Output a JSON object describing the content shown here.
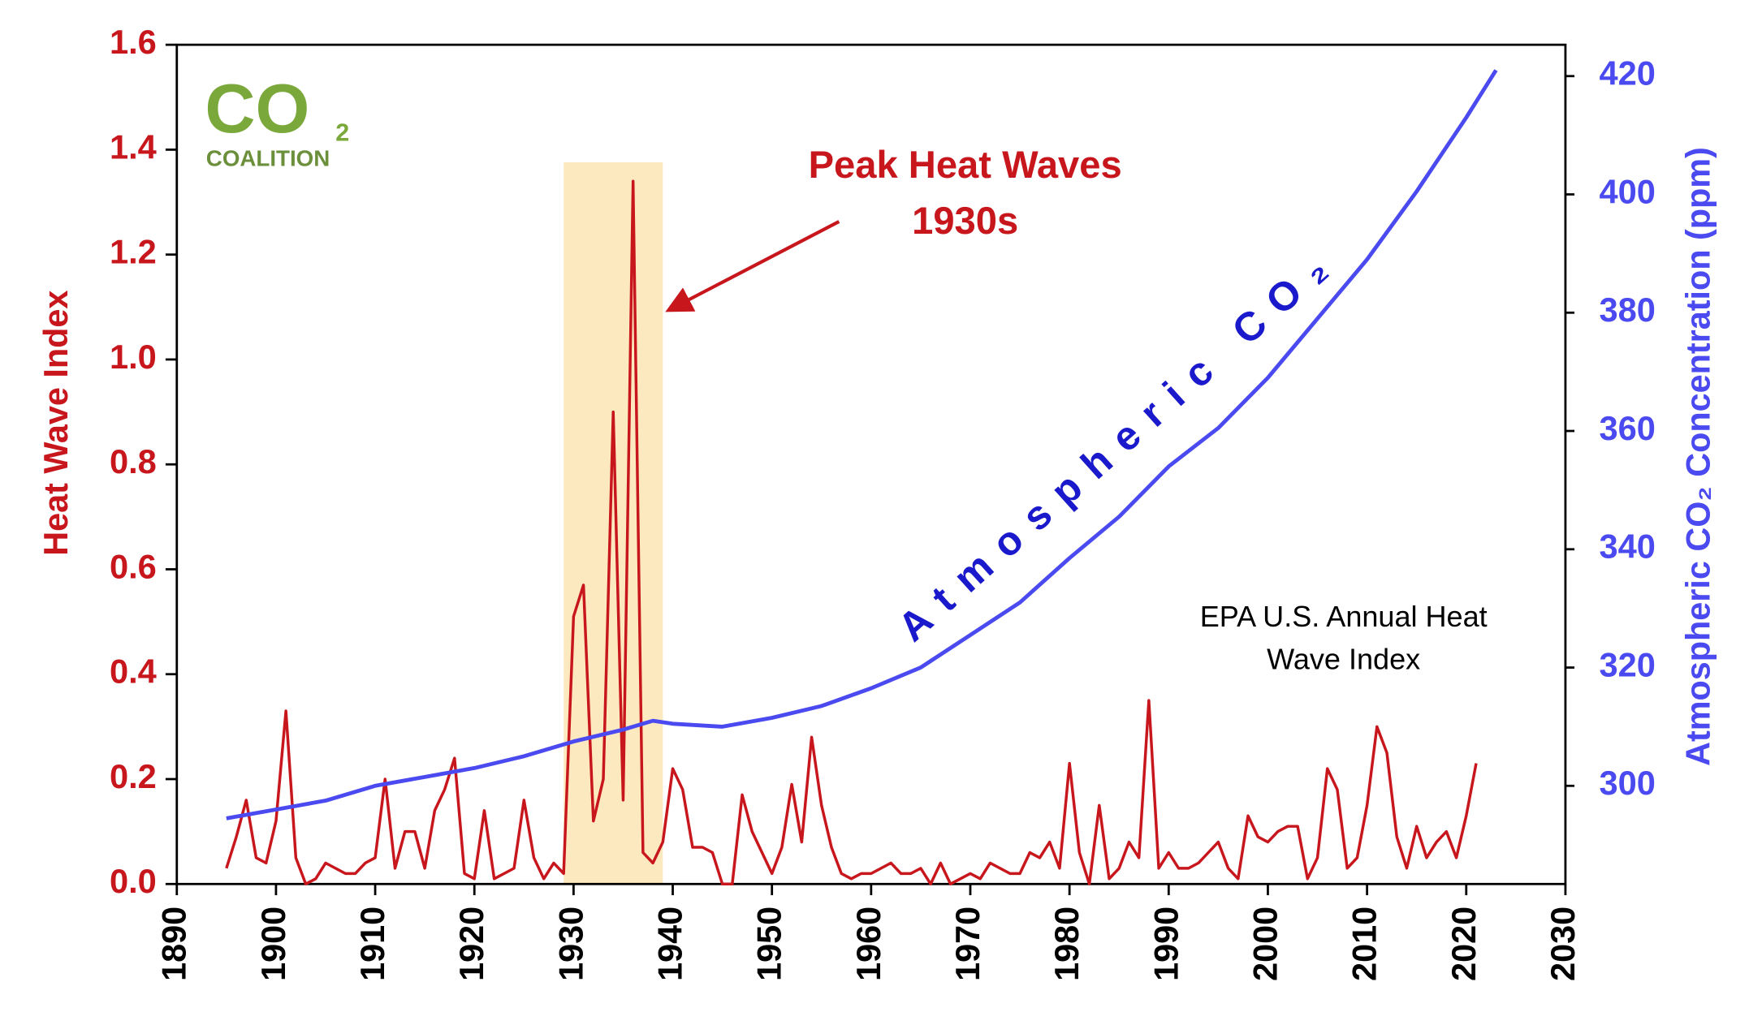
{
  "logo": {
    "text": "CO",
    "subscript": "2",
    "name": "COALITION"
  },
  "chart_data": {
    "type": "line",
    "y_label": "Heat Wave Index",
    "y2_label": "Atmospheric CO₂ Concentration (ppm)",
    "annotations": {
      "peak_line1": "Peak Heat Waves",
      "peak_line2": "1930s",
      "co2_label": "Atmospheric CO₂",
      "source_line1": "EPA U.S. Annual Heat",
      "source_line2": "Wave Index"
    },
    "shaded_span": [
      1929,
      1939
    ],
    "xlim": [
      1890,
      2030
    ],
    "xticks": [
      1890,
      1900,
      1910,
      1920,
      1930,
      1940,
      1950,
      1960,
      1970,
      1980,
      1990,
      2000,
      2010,
      2020,
      2030
    ],
    "ylim": [
      0,
      1.6
    ],
    "yticks": [
      {
        "value": 0,
        "label": "0.0"
      },
      0.2,
      0.4,
      0.6,
      0.8,
      {
        "value": 1,
        "label": "1.0"
      },
      1.2,
      1.4,
      1.6
    ],
    "y2lim": [
      283.4,
      425.3
    ],
    "y2ticks": [
      300,
      320,
      340,
      360,
      380,
      400,
      420
    ],
    "series": [
      {
        "name": "EPA U.S. Annual Heat Wave Index",
        "color": "#c8161d",
        "axis": "y",
        "x": [
          1895,
          1896,
          1897,
          1898,
          1899,
          1900,
          1901,
          1902,
          1903,
          1904,
          1905,
          1906,
          1907,
          1908,
          1909,
          1910,
          1911,
          1912,
          1913,
          1914,
          1915,
          1916,
          1917,
          1918,
          1919,
          1920,
          1921,
          1922,
          1923,
          1924,
          1925,
          1926,
          1927,
          1928,
          1929,
          1930,
          1931,
          1932,
          1933,
          1934,
          1935,
          1936,
          1937,
          1938,
          1939,
          1940,
          1941,
          1942,
          1943,
          1944,
          1945,
          1946,
          1947,
          1948,
          1949,
          1950,
          1951,
          1952,
          1953,
          1954,
          1955,
          1956,
          1957,
          1958,
          1959,
          1960,
          1961,
          1962,
          1963,
          1964,
          1965,
          1966,
          1967,
          1968,
          1969,
          1970,
          1971,
          1972,
          1973,
          1974,
          1975,
          1976,
          1977,
          1978,
          1979,
          1980,
          1981,
          1982,
          1983,
          1984,
          1985,
          1986,
          1987,
          1988,
          1989,
          1990,
          1991,
          1992,
          1993,
          1994,
          1995,
          1996,
          1997,
          1998,
          1999,
          2000,
          2001,
          2002,
          2003,
          2004,
          2005,
          2006,
          2007,
          2008,
          2009,
          2010,
          2011,
          2012,
          2013,
          2014,
          2015,
          2016,
          2017,
          2018,
          2019,
          2020,
          2021
        ],
        "values": [
          0.03,
          0.09,
          0.16,
          0.05,
          0.04,
          0.12,
          0.33,
          0.05,
          0.0,
          0.01,
          0.04,
          0.03,
          0.02,
          0.02,
          0.04,
          0.05,
          0.2,
          0.03,
          0.1,
          0.1,
          0.03,
          0.14,
          0.18,
          0.24,
          0.02,
          0.01,
          0.14,
          0.01,
          0.02,
          0.03,
          0.16,
          0.05,
          0.01,
          0.04,
          0.02,
          0.51,
          0.57,
          0.12,
          0.2,
          0.9,
          0.16,
          1.34,
          0.06,
          0.04,
          0.08,
          0.22,
          0.18,
          0.07,
          0.07,
          0.06,
          0.0,
          0.0,
          0.17,
          0.1,
          0.06,
          0.02,
          0.07,
          0.19,
          0.08,
          0.28,
          0.15,
          0.07,
          0.02,
          0.01,
          0.02,
          0.02,
          0.03,
          0.04,
          0.02,
          0.02,
          0.03,
          0.0,
          0.04,
          0.0,
          0.01,
          0.02,
          0.01,
          0.04,
          0.03,
          0.02,
          0.02,
          0.06,
          0.05,
          0.08,
          0.03,
          0.23,
          0.06,
          0.0,
          0.15,
          0.01,
          0.03,
          0.08,
          0.05,
          0.35,
          0.03,
          0.06,
          0.03,
          0.03,
          0.04,
          0.06,
          0.08,
          0.03,
          0.01,
          0.13,
          0.09,
          0.08,
          0.1,
          0.11,
          0.11,
          0.01,
          0.05,
          0.22,
          0.18,
          0.03,
          0.05,
          0.15,
          0.3,
          0.25,
          0.09,
          0.03,
          0.11,
          0.05,
          0.08,
          0.1,
          0.05,
          0.13,
          0.23
        ]
      },
      {
        "name": "Atmospheric CO₂",
        "color": "#4a4af0",
        "axis": "y2",
        "x": [
          1895,
          1900,
          1905,
          1910,
          1915,
          1920,
          1925,
          1930,
          1935,
          1938,
          1940,
          1945,
          1950,
          1955,
          1960,
          1965,
          1970,
          1975,
          1980,
          1985,
          1990,
          1995,
          2000,
          2005,
          2010,
          2015,
          2020,
          2023
        ],
        "values": [
          294.5,
          296,
          297.5,
          300,
          301.5,
          303,
          305,
          307.5,
          309.5,
          311,
          310.5,
          310,
          311.5,
          313.5,
          316.5,
          320,
          325.5,
          331,
          338.5,
          345.5,
          354,
          360.5,
          369,
          379,
          389,
          400.5,
          413,
          421
        ]
      }
    ]
  }
}
